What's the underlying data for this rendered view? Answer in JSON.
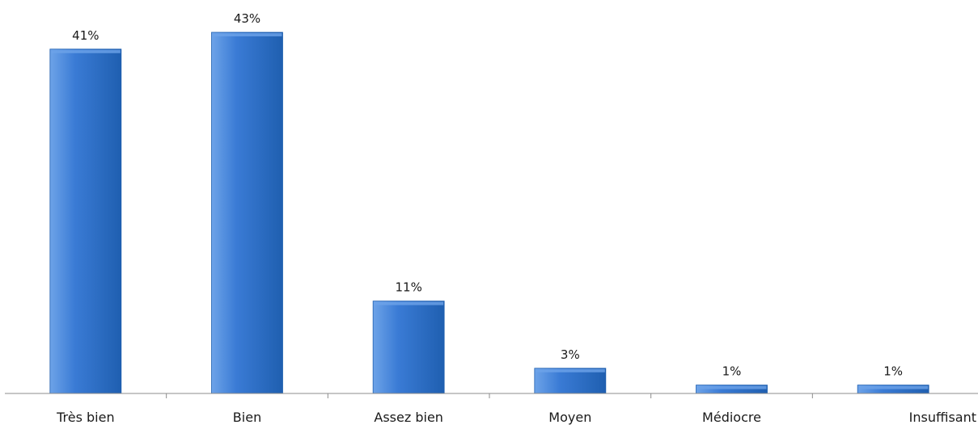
{
  "chart_data": {
    "type": "bar",
    "categories": [
      "Très bien",
      "Bien",
      "Assez bien",
      "Moyen",
      "Médiocre",
      "Insuffisant"
    ],
    "values": [
      41,
      43,
      11,
      3,
      1,
      1
    ],
    "value_labels": [
      "41%",
      "43%",
      "11%",
      "3%",
      "1%",
      "1%"
    ],
    "unit": "%",
    "title": "",
    "xlabel": "",
    "ylabel": "",
    "ylim": [
      0,
      43
    ],
    "grid": false,
    "legend": "none",
    "colors": {
      "bar_light": "#6da3e8",
      "bar_main": "#3a7bd5",
      "bar_dark": "#1f5fb0",
      "axis": "#8c8c8c"
    }
  }
}
